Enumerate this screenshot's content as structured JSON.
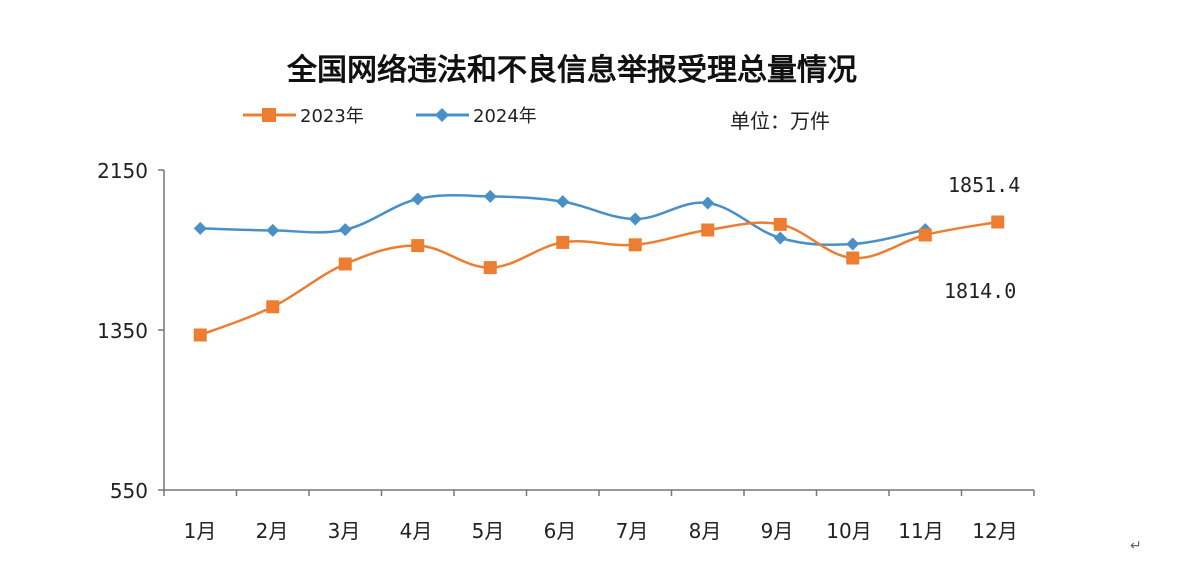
{
  "chart_data": {
    "type": "line",
    "title": "全国网络违法和不良信息举报受理总量情况",
    "unit": "单位：万件",
    "xlabel": "",
    "ylabel": "",
    "categories": [
      "1月",
      "2月",
      "3月",
      "4月",
      "5月",
      "6月",
      "7月",
      "8月",
      "9月",
      "10月",
      "11月",
      "12月"
    ],
    "yticks": [
      "2150",
      "1350",
      "550"
    ],
    "ylim": [
      550,
      2150
    ],
    "series": [
      {
        "name": "2023年",
        "color": "#ED7D31",
        "marker": "square",
        "values": [
          1325,
          1466,
          1680,
          1772,
          1662,
          1788,
          1776,
          1850,
          1878,
          1710,
          1825,
          1890
        ]
      },
      {
        "name": "2024年",
        "color": "#4A90C8",
        "marker": "diamond",
        "values": [
          1858,
          1848,
          1852,
          2005,
          2018,
          1992,
          1905,
          1985,
          1810,
          1780,
          1852,
          null
        ]
      }
    ],
    "annotations": [
      "1851.4",
      "1814.0"
    ],
    "legend_position": "top-left"
  }
}
